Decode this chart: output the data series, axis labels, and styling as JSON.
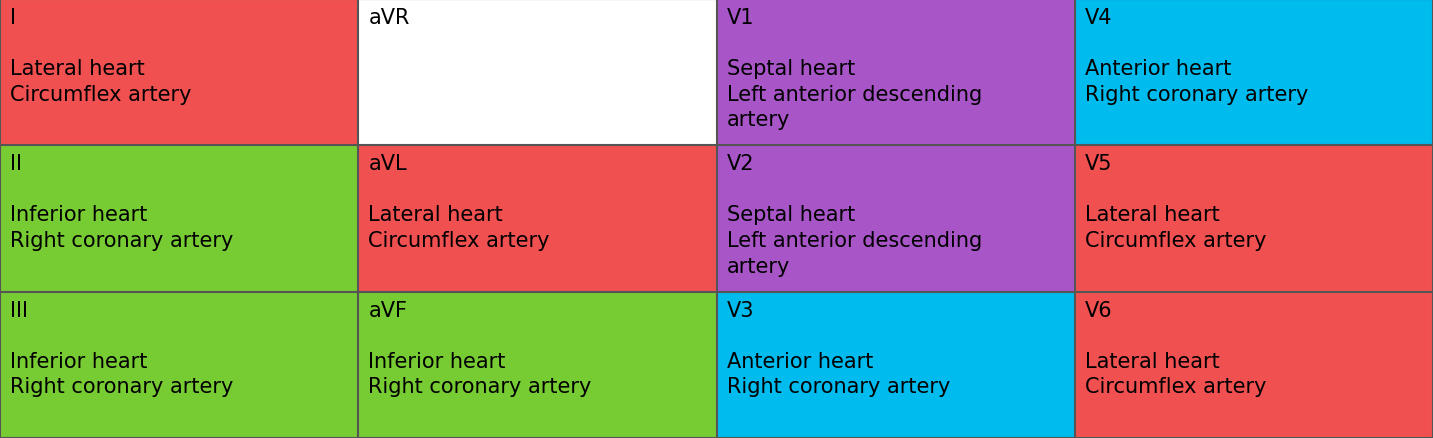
{
  "cols": 4,
  "rows": 3,
  "cells": [
    {
      "row": 0,
      "col": 0,
      "label": "I",
      "content": "Lateral heart\nCircumflex artery",
      "bg": "#F05050",
      "text_color": "#000000"
    },
    {
      "row": 0,
      "col": 1,
      "label": "aVR",
      "content": "",
      "bg": "#FFFFFF",
      "text_color": "#000000"
    },
    {
      "row": 0,
      "col": 2,
      "label": "V1",
      "content": "Septal heart\nLeft anterior descending\nartery",
      "bg": "#A855C8",
      "text_color": "#000000"
    },
    {
      "row": 0,
      "col": 3,
      "label": "V4",
      "content": "Anterior heart\nRight coronary artery",
      "bg": "#00BBEE",
      "text_color": "#000000"
    },
    {
      "row": 1,
      "col": 0,
      "label": "II",
      "content": "Inferior heart\nRight coronary artery",
      "bg": "#77CC33",
      "text_color": "#000000"
    },
    {
      "row": 1,
      "col": 1,
      "label": "aVL",
      "content": "Lateral heart\nCircumflex artery",
      "bg": "#F05050",
      "text_color": "#000000"
    },
    {
      "row": 1,
      "col": 2,
      "label": "V2",
      "content": "Septal heart\nLeft anterior descending\nartery",
      "bg": "#A855C8",
      "text_color": "#000000"
    },
    {
      "row": 1,
      "col": 3,
      "label": "V5",
      "content": "Lateral heart\nCircumflex artery",
      "bg": "#F05050",
      "text_color": "#000000"
    },
    {
      "row": 2,
      "col": 0,
      "label": "III",
      "content": "Inferior heart\nRight coronary artery",
      "bg": "#77CC33",
      "text_color": "#000000"
    },
    {
      "row": 2,
      "col": 1,
      "label": "aVF",
      "content": "Inferior heart\nRight coronary artery",
      "bg": "#77CC33",
      "text_color": "#000000"
    },
    {
      "row": 2,
      "col": 2,
      "label": "V3",
      "content": "Anterior heart\nRight coronary artery",
      "bg": "#00BBEE",
      "text_color": "#000000"
    },
    {
      "row": 2,
      "col": 3,
      "label": "V6",
      "content": "Lateral heart\nCircumflex artery",
      "bg": "#F05050",
      "text_color": "#000000"
    }
  ],
  "grid_color": "#555555",
  "grid_linewidth": 1.5,
  "label_fontsize": 15,
  "content_fontsize": 15
}
